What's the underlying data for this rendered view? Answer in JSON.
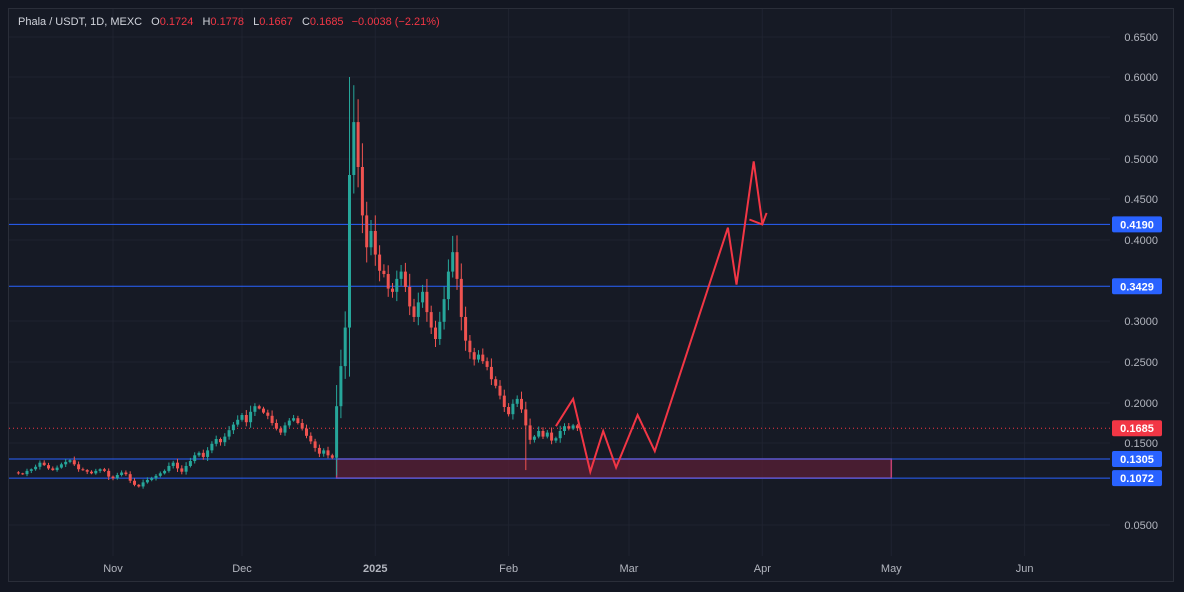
{
  "legend": {
    "symbol": "Phala / USDT, 1D, MEXC",
    "open_label": "O",
    "open": "0.1724",
    "high_label": "H",
    "high": "0.1778",
    "low_label": "L",
    "low": "0.1667",
    "close_label": "C",
    "close": "0.1685",
    "change": "−0.0038 (−2.21%)"
  },
  "colors": {
    "background": "#161a25",
    "up": "#26a69a",
    "down": "#ef5350",
    "level_line": "#2962ff",
    "projection": "#f23645",
    "zone_fill": "#5a1f35",
    "zone_border": "#c04070",
    "price_badge": "#f23645"
  },
  "chart_data": {
    "type": "candlestick",
    "ylim": [
      0.0,
      0.67
    ],
    "ytick_labels": [
      "0.0500",
      "0.1500",
      "0.2000",
      "0.2500",
      "0.3000",
      "0.4000",
      "0.4500",
      "0.5000",
      "0.5500",
      "0.6000",
      "0.6500"
    ],
    "ytick_values": [
      0.05,
      0.15,
      0.2,
      0.25,
      0.3,
      0.4,
      0.45,
      0.5,
      0.55,
      0.6,
      0.65
    ],
    "xtick_labels": [
      "Nov",
      "Dec",
      "2025",
      "Feb",
      "Mar",
      "Apr",
      "May",
      "Jun"
    ],
    "xtick_dates": [
      "2024-11-01",
      "2024-12-01",
      "2025-01-01",
      "2025-02-01",
      "2025-03-01",
      "2025-04-01",
      "2025-05-01",
      "2025-06-01"
    ],
    "current_price": 0.1685,
    "current_price_label": "0.1685",
    "levels": [
      {
        "value": 0.419,
        "label": "0.4190"
      },
      {
        "value": 0.3429,
        "label": "0.3429"
      },
      {
        "value": 0.1305,
        "label": "0.1305"
      },
      {
        "value": 0.1072,
        "label": "0.1072"
      }
    ],
    "zone": {
      "from_date": "2024-12-23",
      "to_date": "2025-05-01",
      "low": 0.1072,
      "high": 0.1305
    },
    "projection_path": [
      [
        "2025-02-12",
        0.171
      ],
      [
        "2025-02-16",
        0.205
      ],
      [
        "2025-02-20",
        0.115
      ],
      [
        "2025-02-23",
        0.165
      ],
      [
        "2025-02-26",
        0.12
      ],
      [
        "2025-03-03",
        0.185
      ],
      [
        "2025-03-07",
        0.14
      ],
      [
        "2025-03-24",
        0.415
      ],
      [
        "2025-03-26",
        0.345
      ],
      [
        "2025-03-30",
        0.497
      ],
      [
        "2025-04-01",
        0.42
      ]
    ],
    "arrow_head": [
      [
        "2025-03-29",
        0.425
      ],
      [
        "2025-04-01",
        0.419
      ],
      [
        "2025-04-02",
        0.433
      ]
    ],
    "start_date": "2024-10-10",
    "closes": [
      0.113,
      0.112,
      0.116,
      0.118,
      0.121,
      0.126,
      0.123,
      0.119,
      0.117,
      0.12,
      0.124,
      0.127,
      0.129,
      0.124,
      0.118,
      0.117,
      0.115,
      0.113,
      0.116,
      0.118,
      0.116,
      0.109,
      0.107,
      0.111,
      0.114,
      0.112,
      0.104,
      0.099,
      0.097,
      0.102,
      0.105,
      0.107,
      0.11,
      0.113,
      0.116,
      0.122,
      0.126,
      0.119,
      0.115,
      0.122,
      0.128,
      0.135,
      0.138,
      0.133,
      0.141,
      0.149,
      0.155,
      0.151,
      0.158,
      0.166,
      0.173,
      0.179,
      0.185,
      0.176,
      0.189,
      0.196,
      0.193,
      0.188,
      0.184,
      0.175,
      0.168,
      0.163,
      0.172,
      0.178,
      0.181,
      0.175,
      0.168,
      0.159,
      0.152,
      0.144,
      0.137,
      0.141,
      0.135,
      0.132,
      0.196,
      0.245,
      0.292,
      0.48,
      0.545,
      0.49,
      0.43,
      0.391,
      0.411,
      0.382,
      0.362,
      0.358,
      0.34,
      0.336,
      0.352,
      0.361,
      0.342,
      0.318,
      0.305,
      0.323,
      0.336,
      0.311,
      0.292,
      0.278,
      0.299,
      0.327,
      0.361,
      0.385,
      0.352,
      0.305,
      0.276,
      0.262,
      0.253,
      0.259,
      0.251,
      0.244,
      0.229,
      0.221,
      0.209,
      0.195,
      0.186,
      0.199,
      0.205,
      0.192,
      0.172,
      0.154,
      0.158,
      0.165,
      0.158,
      0.163,
      0.153,
      0.156,
      0.165,
      0.171,
      0.168,
      0.172,
      0.1685
    ]
  }
}
